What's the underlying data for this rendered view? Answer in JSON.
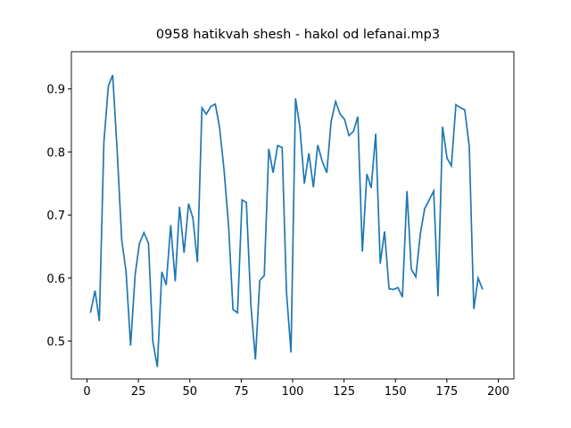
{
  "chart_data": {
    "type": "line",
    "title": "0958 hatikvah shesh - hakol od lefanai.mp3",
    "x": [
      1.7,
      3.9,
      6.0,
      8.2,
      10.4,
      12.5,
      14.7,
      16.9,
      19.0,
      21.2,
      23.4,
      25.5,
      27.7,
      29.9,
      32.0,
      34.2,
      36.4,
      38.5,
      40.7,
      42.9,
      45.0,
      47.2,
      49.4,
      51.5,
      53.7,
      55.9,
      58.0,
      60.2,
      62.4,
      64.5,
      66.7,
      68.9,
      71.0,
      73.2,
      75.4,
      77.5,
      79.7,
      81.9,
      84.0,
      86.2,
      88.4,
      90.5,
      92.7,
      94.9,
      97.0,
      99.2,
      101.4,
      103.5,
      105.7,
      107.9,
      110.1,
      112.2,
      114.4,
      116.6,
      118.7,
      120.9,
      123.1,
      125.2,
      127.4,
      129.6,
      131.7,
      133.9,
      136.1,
      138.2,
      140.4,
      142.6,
      144.7,
      146.9,
      149.1,
      151.2,
      153.4,
      155.6,
      157.7,
      159.9,
      162.1,
      164.2,
      166.4,
      168.6,
      170.7,
      172.9,
      175.1,
      177.2,
      179.4,
      181.6,
      183.7,
      185.9,
      188.1,
      190.2,
      192.4
    ],
    "series": [
      {
        "color": "#1f77b4",
        "values": [
          0.545,
          0.58,
          0.532,
          0.815,
          0.905,
          0.922,
          0.8,
          0.66,
          0.61,
          0.493,
          0.605,
          0.655,
          0.672,
          0.655,
          0.5,
          0.459,
          0.61,
          0.589,
          0.684,
          0.595,
          0.713,
          0.64,
          0.718,
          0.695,
          0.625,
          0.87,
          0.86,
          0.872,
          0.876,
          0.838,
          0.77,
          0.68,
          0.55,
          0.545,
          0.724,
          0.72,
          0.557,
          0.471,
          0.596,
          0.604,
          0.805,
          0.767,
          0.81,
          0.807,
          0.578,
          0.482,
          0.885,
          0.84,
          0.75,
          0.798,
          0.744,
          0.811,
          0.785,
          0.767,
          0.848,
          0.88,
          0.86,
          0.852,
          0.826,
          0.833,
          0.856,
          0.642,
          0.765,
          0.743,
          0.829,
          0.623,
          0.674,
          0.583,
          0.582,
          0.585,
          0.57,
          0.738,
          0.614,
          0.602,
          0.67,
          0.71,
          0.724,
          0.738,
          0.571,
          0.84,
          0.79,
          0.778,
          0.875,
          0.87,
          0.867,
          0.808,
          0.551,
          0.6,
          0.582
        ]
      }
    ],
    "xlim": [
      -7.6,
      207.6
    ],
    "ylim": [
      0.44,
      0.959
    ],
    "xticks": [
      0,
      25,
      50,
      75,
      100,
      125,
      150,
      175,
      200
    ],
    "yticks": [
      0.5,
      0.6,
      0.7,
      0.8,
      0.9
    ]
  }
}
